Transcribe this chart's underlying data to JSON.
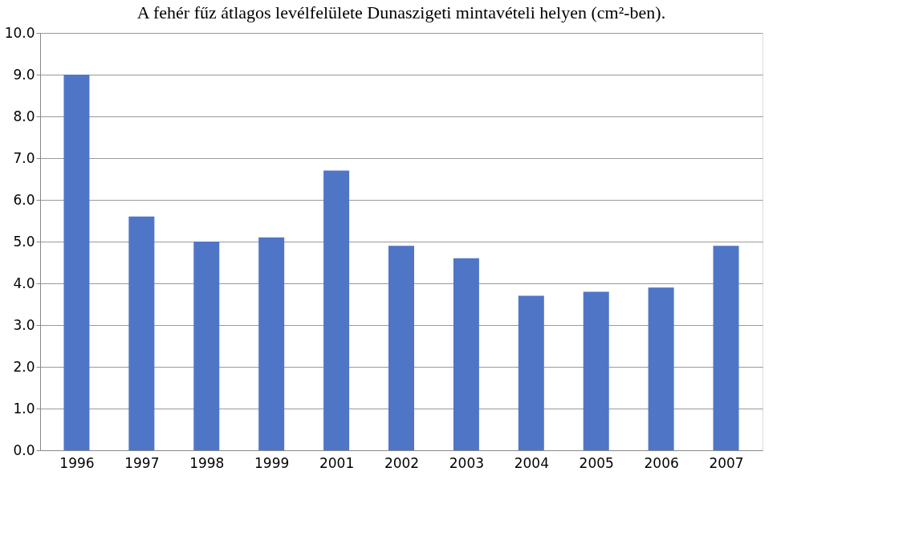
{
  "chart_data": {
    "type": "bar",
    "title": "A fehér fűz átlagos levélfelülete Dunaszigeti mintavételi helyen (cm²-ben).",
    "categories": [
      "1996",
      "1997",
      "1998",
      "1999",
      "2001",
      "2002",
      "2003",
      "2004",
      "2005",
      "2006",
      "2007"
    ],
    "values": [
      9.0,
      5.6,
      5.0,
      5.1,
      6.7,
      4.9,
      4.6,
      3.7,
      3.8,
      3.9,
      4.9
    ],
    "color": "#4f76c6",
    "ylim": [
      0,
      10
    ],
    "yticks": [
      {
        "value": 0,
        "label": "0.0"
      },
      {
        "value": 1,
        "label": "1.0"
      },
      {
        "value": 2,
        "label": "2.0"
      },
      {
        "value": 3,
        "label": "3.0"
      },
      {
        "value": 4,
        "label": "4.0"
      },
      {
        "value": 5,
        "label": "5.0"
      },
      {
        "value": 6,
        "label": "6.0"
      },
      {
        "value": 7,
        "label": "7.0"
      },
      {
        "value": 8,
        "label": "8.0"
      },
      {
        "value": 9,
        "label": "9.0"
      },
      {
        "value": 10,
        "label": "10.0"
      }
    ],
    "grid": "y"
  }
}
